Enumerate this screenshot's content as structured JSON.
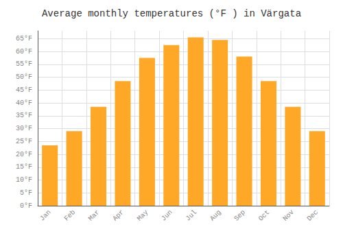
{
  "chart_data": {
    "type": "bar",
    "title": "Average monthly temperatures (°F ) in Värgata",
    "categories": [
      "Jan",
      "Feb",
      "Mar",
      "Apr",
      "May",
      "Jun",
      "Jul",
      "Aug",
      "Sep",
      "Oct",
      "Nov",
      "Dec"
    ],
    "values": [
      23.5,
      29.0,
      38.5,
      48.5,
      57.5,
      62.5,
      65.5,
      64.5,
      58.0,
      48.5,
      38.5,
      29.0
    ],
    "color": "#FFA726",
    "ylim": [
      0,
      68
    ],
    "yticks": [
      {
        "value": 0,
        "label": "0°F"
      },
      {
        "value": 5,
        "label": "5°F"
      },
      {
        "value": 10,
        "label": "10°F"
      },
      {
        "value": 15,
        "label": "15°F"
      },
      {
        "value": 20,
        "label": "20°F"
      },
      {
        "value": 25,
        "label": "25°F"
      },
      {
        "value": 30,
        "label": "30°F"
      },
      {
        "value": 35,
        "label": "35°F"
      },
      {
        "value": 40,
        "label": "40°F"
      },
      {
        "value": 45,
        "label": "45°F"
      },
      {
        "value": 50,
        "label": "50°F"
      },
      {
        "value": 55,
        "label": "55°F"
      },
      {
        "value": 60,
        "label": "60°F"
      },
      {
        "value": 65,
        "label": "65°F"
      }
    ],
    "grid": true
  }
}
